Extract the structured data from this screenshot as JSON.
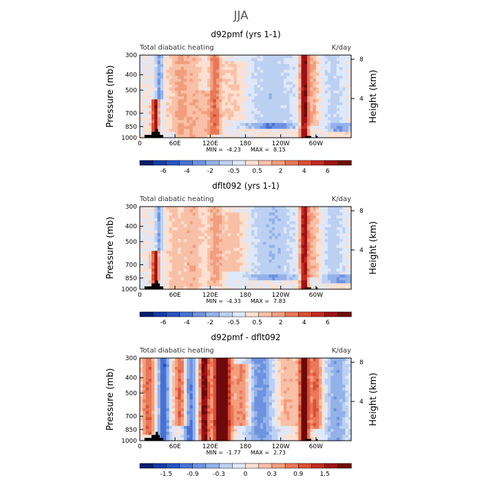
{
  "main_title": "JJA",
  "colors": {
    "scale_pos": [
      "#fde0d0",
      "#f8c0a6",
      "#f29e7e",
      "#ea7757",
      "#dd4e34",
      "#c42a1f",
      "#9e1216",
      "#6e0a0c"
    ],
    "scale_neg": [
      "#dfe8f8",
      "#bcd0f2",
      "#94b2ea",
      "#6d92e0",
      "#4672d4",
      "#2454c2",
      "#123ca6",
      "#081e6e"
    ],
    "terrain": "#000000"
  },
  "chart_data": [
    {
      "type": "heatmap",
      "title": "d92pmf (yrs 1-1)",
      "left_label": "Total diabatic heating",
      "right_label": "K/day",
      "ylabel": "Pressure (mb)",
      "ylabel_right": "Height (km)",
      "y_ticks": [
        "300",
        "400",
        "500",
        "700",
        "850",
        "1000"
      ],
      "y_tick_values": [
        300,
        400,
        500,
        700,
        850,
        1000
      ],
      "height_ticks": [
        "8",
        "4"
      ],
      "height_tick_km": [
        8,
        4
      ],
      "x_ticks": [
        "0",
        "60E",
        "120E",
        "180",
        "120W",
        "60W"
      ],
      "x_tick_deg": [
        0,
        60,
        120,
        180,
        240,
        300
      ],
      "xlim": [
        0,
        360
      ],
      "ylim": [
        1000,
        300
      ],
      "min_label": "MIN =",
      "min_value": "-4.23",
      "max_label": "MAX =",
      "max_value": "8.15",
      "colorbar_labels": [
        "-6",
        "-4",
        "-2",
        "-0.5",
        "0.5",
        "2",
        "4",
        "6"
      ],
      "scale_max": 8,
      "features": [
        {
          "lon": 28,
          "width": 7,
          "amp": 8.15,
          "p_top": 560,
          "p_bottom": 1000
        },
        {
          "lon": 33,
          "width": 6,
          "amp": -3.2,
          "p_top": 300,
          "p_bottom": 1000
        },
        {
          "lon": 55,
          "width": 12,
          "amp": 1.0,
          "p_top": 300,
          "p_bottom": 900
        },
        {
          "lon": 70,
          "width": 10,
          "amp": 2.0,
          "p_top": 300,
          "p_bottom": 1000
        },
        {
          "lon": 90,
          "width": 14,
          "amp": 1.6,
          "p_top": 300,
          "p_bottom": 1000
        },
        {
          "lon": 128,
          "width": 10,
          "amp": 3.5,
          "p_top": 300,
          "p_bottom": 950
        },
        {
          "lon": 110,
          "width": 14,
          "amp": 1.3,
          "p_top": 500,
          "p_bottom": 1000
        },
        {
          "lon": 160,
          "width": 18,
          "amp": 1.2,
          "p_top": 330,
          "p_bottom": 760
        },
        {
          "lon": 225,
          "width": 40,
          "amp": -1.6,
          "p_top": 300,
          "p_bottom": 820
        },
        {
          "lon": 225,
          "width": 45,
          "amp": -3.8,
          "p_top": 820,
          "p_bottom": 880
        },
        {
          "lon": 280,
          "width": 7,
          "amp": 7.5,
          "p_top": 300,
          "p_bottom": 1000
        },
        {
          "lon": 295,
          "width": 10,
          "amp": 2.0,
          "p_top": 300,
          "p_bottom": 860
        },
        {
          "lon": 330,
          "width": 18,
          "amp": -1.4,
          "p_top": 300,
          "p_bottom": 820
        },
        {
          "lon": 340,
          "width": 22,
          "amp": -3.0,
          "p_top": 820,
          "p_bottom": 900
        },
        {
          "lon": 350,
          "width": 30,
          "amp": 0.6,
          "p_top": 900,
          "p_bottom": 1000
        }
      ],
      "terrain": [
        {
          "lon0": 8,
          "lon1": 40,
          "p_top": 960
        },
        {
          "lon0": 20,
          "lon1": 34,
          "p_top": 920
        },
        {
          "lon0": 27,
          "lon1": 31,
          "p_top": 880
        },
        {
          "lon0": 282,
          "lon1": 292,
          "p_top": 975
        },
        {
          "lon0": 300,
          "lon1": 303,
          "p_top": 975
        }
      ]
    },
    {
      "type": "heatmap",
      "title": "dflt092 (yrs 1-1)",
      "left_label": "Total diabatic heating",
      "right_label": "K/day",
      "ylabel": "Pressure (mb)",
      "ylabel_right": "Height (km)",
      "y_ticks": [
        "300",
        "400",
        "500",
        "700",
        "850",
        "1000"
      ],
      "y_tick_values": [
        300,
        400,
        500,
        700,
        850,
        1000
      ],
      "height_ticks": [
        "8",
        "4"
      ],
      "height_tick_km": [
        8,
        4
      ],
      "x_ticks": [
        "0",
        "60E",
        "120E",
        "180",
        "120W",
        "60W"
      ],
      "x_tick_deg": [
        0,
        60,
        120,
        180,
        240,
        300
      ],
      "xlim": [
        0,
        360
      ],
      "ylim": [
        1000,
        300
      ],
      "min_label": "MIN =",
      "min_value": "-4.33",
      "max_label": "MAX =",
      "max_value": "7.83",
      "colorbar_labels": [
        "-6",
        "-4",
        "-2",
        "-0.5",
        "0.5",
        "2",
        "4",
        "6"
      ],
      "scale_max": 8,
      "features": [
        {
          "lon": 28,
          "width": 7,
          "amp": 7.8,
          "p_top": 560,
          "p_bottom": 1000
        },
        {
          "lon": 33,
          "width": 6,
          "amp": -3.0,
          "p_top": 300,
          "p_bottom": 1000
        },
        {
          "lon": 60,
          "width": 14,
          "amp": 1.4,
          "p_top": 300,
          "p_bottom": 1000
        },
        {
          "lon": 90,
          "width": 16,
          "amp": 1.8,
          "p_top": 300,
          "p_bottom": 1000
        },
        {
          "lon": 128,
          "width": 12,
          "amp": 2.2,
          "p_top": 300,
          "p_bottom": 950
        },
        {
          "lon": 160,
          "width": 22,
          "amp": 1.6,
          "p_top": 330,
          "p_bottom": 780
        },
        {
          "lon": 225,
          "width": 40,
          "amp": -1.8,
          "p_top": 300,
          "p_bottom": 820
        },
        {
          "lon": 225,
          "width": 45,
          "amp": -3.2,
          "p_top": 820,
          "p_bottom": 880
        },
        {
          "lon": 280,
          "width": 7,
          "amp": 7.0,
          "p_top": 300,
          "p_bottom": 1000
        },
        {
          "lon": 295,
          "width": 10,
          "amp": 2.0,
          "p_top": 300,
          "p_bottom": 860
        },
        {
          "lon": 330,
          "width": 18,
          "amp": -1.5,
          "p_top": 300,
          "p_bottom": 820
        },
        {
          "lon": 340,
          "width": 22,
          "amp": -3.4,
          "p_top": 820,
          "p_bottom": 900
        },
        {
          "lon": 350,
          "width": 30,
          "amp": 0.6,
          "p_top": 900,
          "p_bottom": 1000
        }
      ],
      "terrain": [
        {
          "lon0": 8,
          "lon1": 40,
          "p_top": 960
        },
        {
          "lon0": 20,
          "lon1": 34,
          "p_top": 920
        },
        {
          "lon0": 27,
          "lon1": 31,
          "p_top": 880
        },
        {
          "lon0": 282,
          "lon1": 292,
          "p_top": 975
        },
        {
          "lon0": 300,
          "lon1": 303,
          "p_top": 975
        }
      ]
    },
    {
      "type": "heatmap",
      "title": "d92pmf - dflt092",
      "left_label": "Total diabatic heating",
      "right_label": "K/day",
      "ylabel": "Pressure (mb)",
      "ylabel_right": "Height (km)",
      "y_ticks": [
        "300",
        "400",
        "500",
        "700",
        "850",
        "1000"
      ],
      "y_tick_values": [
        300,
        400,
        500,
        700,
        850,
        1000
      ],
      "height_ticks": [
        "8",
        "4"
      ],
      "height_tick_km": [
        8,
        4
      ],
      "x_ticks": [
        "0",
        "60E",
        "120E",
        "180",
        "120W",
        "60W"
      ],
      "x_tick_deg": [
        0,
        60,
        120,
        180,
        240,
        300
      ],
      "xlim": [
        0,
        360
      ],
      "ylim": [
        1000,
        300
      ],
      "min_label": "MIN =",
      "min_value": "-1.77",
      "max_label": "MAX =",
      "max_value": "2.73",
      "colorbar_labels": [
        "-1.5",
        "-0.9",
        "-0.3",
        "0",
        "0.3",
        "0.9",
        "1.5"
      ],
      "scale_max": 2.1,
      "features": [
        {
          "lon": 15,
          "width": 12,
          "amp": 1.0,
          "p_top": 300,
          "p_bottom": 900
        },
        {
          "lon": 40,
          "width": 10,
          "amp": -1.3,
          "p_top": 300,
          "p_bottom": 1000
        },
        {
          "lon": 70,
          "width": 12,
          "amp": 1.1,
          "p_top": 300,
          "p_bottom": 800
        },
        {
          "lon": 85,
          "width": 10,
          "amp": -1.2,
          "p_top": 300,
          "p_bottom": 1000
        },
        {
          "lon": 110,
          "width": 8,
          "amp": 2.0,
          "p_top": 300,
          "p_bottom": 1000
        },
        {
          "lon": 140,
          "width": 14,
          "amp": 2.7,
          "p_top": 300,
          "p_bottom": 1000
        },
        {
          "lon": 175,
          "width": 14,
          "amp": 1.0,
          "p_top": 330,
          "p_bottom": 800
        },
        {
          "lon": 205,
          "width": 25,
          "amp": -0.9,
          "p_top": 300,
          "p_bottom": 1000
        },
        {
          "lon": 250,
          "width": 20,
          "amp": 0.5,
          "p_top": 300,
          "p_bottom": 800
        },
        {
          "lon": 280,
          "width": 8,
          "amp": 2.2,
          "p_top": 300,
          "p_bottom": 1000
        },
        {
          "lon": 300,
          "width": 10,
          "amp": 1.1,
          "p_top": 300,
          "p_bottom": 860
        },
        {
          "lon": 335,
          "width": 20,
          "amp": -0.7,
          "p_top": 300,
          "p_bottom": 1000
        }
      ],
      "terrain": [
        {
          "lon0": 8,
          "lon1": 40,
          "p_top": 960
        },
        {
          "lon0": 20,
          "lon1": 34,
          "p_top": 920
        },
        {
          "lon0": 27,
          "lon1": 31,
          "p_top": 880
        },
        {
          "lon0": 282,
          "lon1": 292,
          "p_top": 975
        },
        {
          "lon0": 300,
          "lon1": 303,
          "p_top": 975
        }
      ]
    }
  ]
}
